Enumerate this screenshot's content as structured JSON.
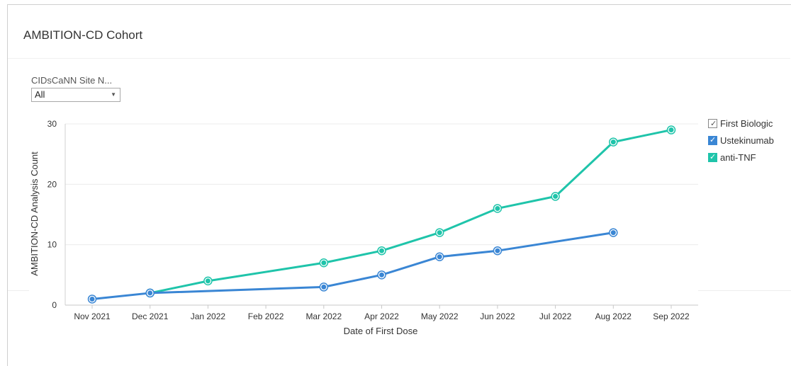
{
  "header": {
    "title": "AMBITION-CD Cohort"
  },
  "filter": {
    "label": "CIDsCaNN Site N...",
    "selected": "All"
  },
  "legend": {
    "title": "First Biologic",
    "items": [
      {
        "label": "Ustekinumab",
        "color": "#3a86d4"
      },
      {
        "label": "anti-TNF",
        "color": "#1fc4aa"
      }
    ]
  },
  "icons": {
    "filter_arrow": "caret-down-icon",
    "legend_check": "checkmark-icon"
  },
  "chart_data": {
    "type": "line",
    "xlabel": "Date of First Dose",
    "ylabel": "AMBITION-CD Analysis Count",
    "categories": [
      "Nov 2021",
      "Dec 2021",
      "Jan 2022",
      "Feb 2022",
      "Mar 2022",
      "Apr 2022",
      "May 2022",
      "Jun 2022",
      "Jul 2022",
      "Aug 2022",
      "Sep 2022"
    ],
    "ylim": [
      0,
      30
    ],
    "yticks": [
      0,
      10,
      20,
      30
    ],
    "grid": true,
    "legend_position": "right",
    "series": [
      {
        "name": "Ustekinumab",
        "color": "#3a86d4",
        "points": [
          {
            "x": "Nov 2021",
            "y": 1
          },
          {
            "x": "Dec 2021",
            "y": 2
          },
          {
            "x": "Mar 2022",
            "y": 3
          },
          {
            "x": "Apr 2022",
            "y": 5
          },
          {
            "x": "May 2022",
            "y": 8
          },
          {
            "x": "Jun 2022",
            "y": 9
          },
          {
            "x": "Aug 2022",
            "y": 12
          }
        ]
      },
      {
        "name": "anti-TNF",
        "color": "#1fc4aa",
        "points": [
          {
            "x": "Dec 2021",
            "y": 2
          },
          {
            "x": "Jan 2022",
            "y": 4
          },
          {
            "x": "Mar 2022",
            "y": 7
          },
          {
            "x": "Apr 2022",
            "y": 9
          },
          {
            "x": "May 2022",
            "y": 12
          },
          {
            "x": "Jun 2022",
            "y": 16
          },
          {
            "x": "Jul 2022",
            "y": 18
          },
          {
            "x": "Aug 2022",
            "y": 27
          },
          {
            "x": "Sep 2022",
            "y": 29
          }
        ]
      }
    ]
  }
}
